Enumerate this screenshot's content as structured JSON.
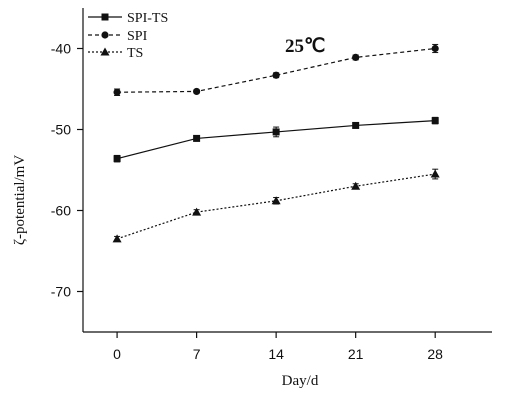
{
  "chart_data": {
    "type": "line",
    "x": [
      0,
      7,
      14,
      21,
      28
    ],
    "xticks": [
      "0",
      "7",
      "14",
      "21",
      "28"
    ],
    "yticks": [
      "-40",
      "-50",
      "-60",
      "-70"
    ],
    "xlabel": "Day/d",
    "ylabel": "ζ-potential/mV",
    "xlim": [
      -3,
      33
    ],
    "ylim": [
      -75,
      -35
    ],
    "annotation": "25℃",
    "legend_position": "top-left",
    "grid": false,
    "series": [
      {
        "name": "SPI-TS",
        "marker": "square",
        "dash": "solid",
        "values": [
          -53.6,
          -51.1,
          -50.3,
          -49.5,
          -48.9
        ],
        "errors": [
          0.4,
          0.3,
          0.6,
          0.2,
          0.4
        ]
      },
      {
        "name": "SPI",
        "marker": "circle",
        "dash": "dashed",
        "values": [
          -45.4,
          -45.3,
          -43.3,
          -41.1,
          -40.0
        ],
        "errors": [
          0.4,
          0.2,
          0.3,
          0.3,
          0.5
        ]
      },
      {
        "name": "TS",
        "marker": "triangle",
        "dash": "dotted",
        "values": [
          -63.5,
          -60.2,
          -58.8,
          -57.0,
          -55.5
        ],
        "errors": [
          0.3,
          0.3,
          0.4,
          0.3,
          0.6
        ]
      }
    ]
  }
}
